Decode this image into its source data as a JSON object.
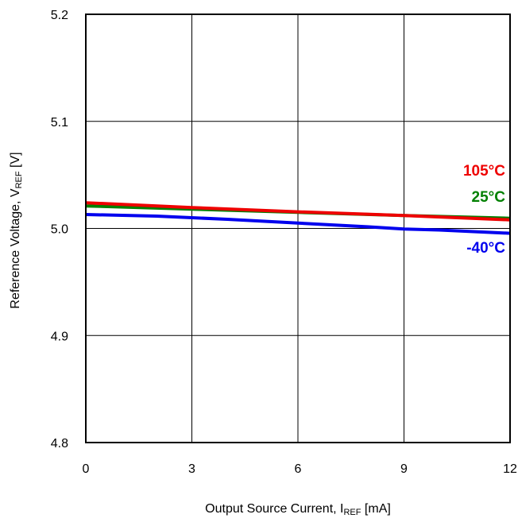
{
  "chart_data": {
    "type": "line",
    "xlabel": {
      "main": "Output Source Current, I",
      "sub": "REF",
      "unit": " [mA]"
    },
    "ylabel": {
      "main": "Reference Voltage, V",
      "sub": "REF",
      "unit": " [V]"
    },
    "xlim": [
      0,
      12
    ],
    "ylim": [
      4.8,
      5.2
    ],
    "xticks": [
      0,
      3,
      6,
      9,
      12
    ],
    "xtick_labels": [
      "0",
      "3",
      "6",
      "9",
      "12"
    ],
    "yticks": [
      4.8,
      4.9,
      5.0,
      5.1,
      5.2
    ],
    "ytick_labels": [
      "4.8",
      "4.9",
      "5.0",
      "5.1",
      "5.2"
    ],
    "grid": true,
    "series": [
      {
        "name": "-40°C",
        "color": "#0000ee",
        "x": [
          0,
          2,
          4,
          6,
          8,
          9,
          10,
          12
        ],
        "y": [
          5.013,
          5.0115,
          5.0085,
          5.005,
          5.0015,
          4.9995,
          4.9985,
          4.9955
        ]
      },
      {
        "name": "25°C",
        "color": "#008000",
        "x": [
          0,
          3,
          6,
          9,
          12
        ],
        "y": [
          5.021,
          5.018,
          5.015,
          5.012,
          5.0095
        ]
      },
      {
        "name": "105°C",
        "color": "#ee0000",
        "x": [
          0,
          3,
          6,
          9,
          12
        ],
        "y": [
          5.024,
          5.0195,
          5.0155,
          5.012,
          5.008
        ]
      }
    ]
  }
}
